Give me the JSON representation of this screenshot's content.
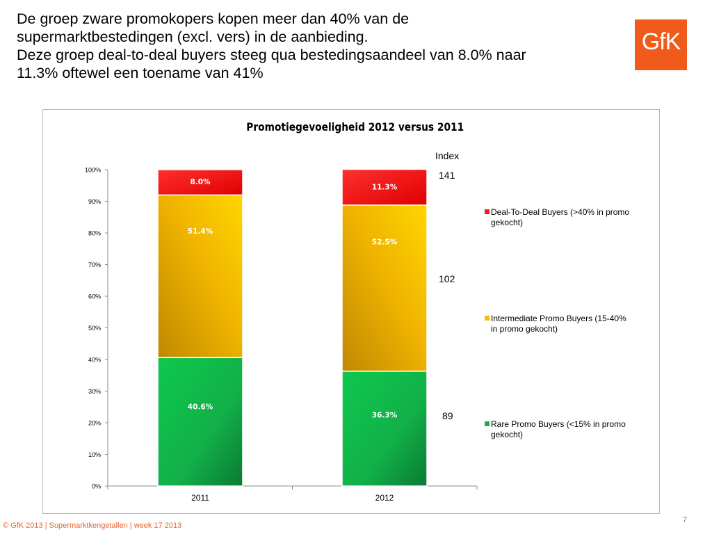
{
  "slide": {
    "headline_line1": "De groep zware promokopers kopen meer dan 40% van de",
    "headline_line2": "supermarktbestedingen (excl. vers) in de aanbieding.",
    "headline_line3": "Deze groep deal-to-deal buyers steeg qua bestedingsaandeel van 8.0% naar",
    "headline_line4": "11.3% oftewel een toename van 41%",
    "logo_text": "GfK",
    "footer": "© GfK 2013 | Supermarktkengetallen | week 17  2013",
    "page_number": "7"
  },
  "chart_data": {
    "type": "bar",
    "stacked": true,
    "title": "Promotiegevoeligheid 2012 versus 2011",
    "categories": [
      "2011",
      "2012"
    ],
    "ylim": [
      0,
      100
    ],
    "ytick_labels": [
      "0%",
      "10%",
      "20%",
      "30%",
      "40%",
      "50%",
      "60%",
      "70%",
      "80%",
      "90%",
      "100%"
    ],
    "series": [
      {
        "name": "Rare Promo Buyers (<15% in promo gekocht)",
        "values": [
          40.6,
          36.3
        ],
        "labels": [
          "40.6%",
          "36.3%"
        ],
        "color": "#1bb04a"
      },
      {
        "name": "Intermediate Promo Buyers (15-40% in promo gekocht)",
        "values": [
          51.4,
          52.5
        ],
        "labels": [
          "51.4%",
          "52.5%"
        ],
        "color": "#f5c000"
      },
      {
        "name": "Deal-To-Deal Buyers (>40% in promo gekocht)",
        "values": [
          8.0,
          11.3
        ],
        "labels": [
          "8.0%",
          "11.3%"
        ],
        "color": "#ff1a1a"
      }
    ],
    "index_header": "Index",
    "index_values": [
      "141",
      "102",
      "89"
    ],
    "legend": [
      {
        "label": "Deal-To-Deal Buyers (>40% in promo gekocht)",
        "color": "#ff1a1a"
      },
      {
        "label": "Intermediate Promo Buyers (15-40% in promo gekocht)",
        "color": "#f5c000"
      },
      {
        "label": "Rare Promo Buyers (<15% in promo gekocht)",
        "color": "#1bb04a"
      }
    ],
    "legend_position": "right",
    "grid": false
  }
}
